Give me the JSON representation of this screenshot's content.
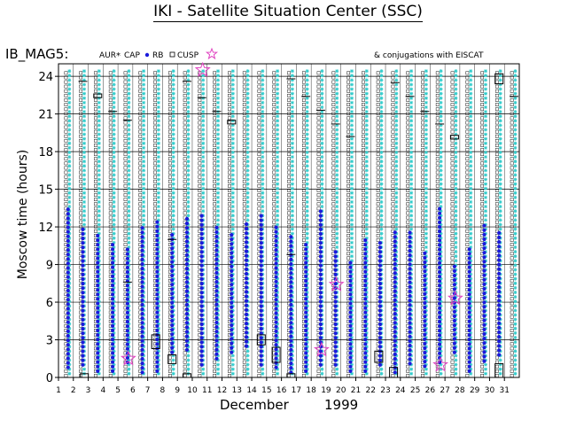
{
  "title": "IKI - Satellite Situation Center (SSC)",
  "header": {
    "dataset": "IB_MAG5:",
    "legend_aur": "AUR",
    "legend_cap": "CAP",
    "legend_rb": "RB",
    "legend_cusp": "CUSP",
    "conjugations": "& conjugations with EISCAT"
  },
  "colors": {
    "aur": "#33cccc",
    "cap": "#33cccc",
    "rb": "#1a1adb",
    "cusp": "#000000",
    "conjugation": "#e040c0",
    "grid": "#000000"
  },
  "chart_data": {
    "type": "scatter",
    "title": "IKI - Satellite Situation Center (SSC)",
    "ylabel": "Moscow time (hours)",
    "xlabel_month": "December",
    "xlabel_year": "1999",
    "xlim": [
      1,
      32
    ],
    "ylim": [
      0,
      25
    ],
    "x_ticks": [
      "1",
      "2",
      "3",
      "4",
      "5",
      "6",
      "7",
      "8",
      "9",
      "10",
      "11",
      "12",
      "13",
      "14",
      "15",
      "16",
      "17",
      "18",
      "19",
      "20",
      "21",
      "22",
      "23",
      "24",
      "25",
      "26",
      "27",
      "28",
      "29",
      "30",
      "31"
    ],
    "y_ticks": [
      0,
      3,
      6,
      9,
      12,
      15,
      18,
      21,
      24
    ],
    "grid": true,
    "series": [
      {
        "name": "AUR",
        "marker": "asterisk-cyan",
        "description": "dense coverage on every orbit pass"
      },
      {
        "name": "CAP",
        "marker": "asterisk-cyan"
      },
      {
        "name": "RB",
        "marker": "dot-blue"
      },
      {
        "name": "CUSP",
        "marker": "open-square"
      }
    ],
    "rb_segments": [
      {
        "day": 2,
        "from": 0.8,
        "to": 13.6
      },
      {
        "day": 3,
        "from": 1.0,
        "to": 12.0
      },
      {
        "day": 4,
        "from": 0.5,
        "to": 11.3
      },
      {
        "day": 5,
        "from": 0.5,
        "to": 10.8
      },
      {
        "day": 6,
        "from": 1.2,
        "to": 10.4
      },
      {
        "day": 7,
        "from": 0.4,
        "to": 12.1
      },
      {
        "day": 8,
        "from": 0.5,
        "to": 12.5
      },
      {
        "day": 9,
        "from": 2.0,
        "to": 11.6
      },
      {
        "day": 10,
        "from": 2.2,
        "to": 12.8
      },
      {
        "day": 11,
        "from": 1.0,
        "to": 13.2
      },
      {
        "day": 12,
        "from": 1.5,
        "to": 12.2
      },
      {
        "day": 13,
        "from": 2.0,
        "to": 11.6
      },
      {
        "day": 14,
        "from": 2.5,
        "to": 12.3
      },
      {
        "day": 15,
        "from": 1.0,
        "to": 13.2
      },
      {
        "day": 16,
        "from": 0.8,
        "to": 12.3
      },
      {
        "day": 17,
        "from": 0.4,
        "to": 11.5
      },
      {
        "day": 18,
        "from": 0.5,
        "to": 10.6
      },
      {
        "day": 19,
        "from": 1.0,
        "to": 13.3
      },
      {
        "day": 20,
        "from": 1.0,
        "to": 10.0
      },
      {
        "day": 21,
        "from": 0.5,
        "to": 9.3
      },
      {
        "day": 22,
        "from": 0.5,
        "to": 11.0
      },
      {
        "day": 23,
        "from": 1.0,
        "to": 10.8
      },
      {
        "day": 24,
        "from": 0.4,
        "to": 11.9
      },
      {
        "day": 25,
        "from": 1.1,
        "to": 11.6
      },
      {
        "day": 26,
        "from": 0.9,
        "to": 10.1
      },
      {
        "day": 27,
        "from": 1.2,
        "to": 13.5
      },
      {
        "day": 28,
        "from": 2.0,
        "to": 9.0
      },
      {
        "day": 29,
        "from": 0.5,
        "to": 10.5
      },
      {
        "day": 30,
        "from": 1.3,
        "to": 12.3
      },
      {
        "day": 31,
        "from": 1.8,
        "to": 11.7
      }
    ],
    "cusp_boxes": [
      {
        "day": 3.1,
        "from": 0.0,
        "to": 0.3
      },
      {
        "day": 7.9,
        "from": 2.3,
        "to": 3.4
      },
      {
        "day": 9.0,
        "from": 1.1,
        "to": 1.8
      },
      {
        "day": 10.0,
        "from": 0.0,
        "to": 0.3
      },
      {
        "day": 15.0,
        "from": 2.6,
        "to": 3.4
      },
      {
        "day": 16.0,
        "from": 1.2,
        "to": 2.4
      },
      {
        "day": 17.0,
        "from": 0.0,
        "to": 0.3
      },
      {
        "day": 22.9,
        "from": 1.2,
        "to": 2.1
      },
      {
        "day": 23.9,
        "from": 0.0,
        "to": 0.8
      },
      {
        "day": 31.0,
        "from": 0.0,
        "to": 1.1
      },
      {
        "day": 31.0,
        "from": 23.4,
        "to": 24.2
      },
      {
        "day": 4.0,
        "from": 22.3,
        "to": 22.6
      },
      {
        "day": 13.0,
        "from": 20.2,
        "to": 20.5
      },
      {
        "day": 28.0,
        "from": 19.0,
        "to": 19.3
      }
    ],
    "orbit_marks": [
      {
        "day": 3.0,
        "hour": 23.6
      },
      {
        "day": 5.0,
        "hour": 21.2
      },
      {
        "day": 6.0,
        "hour": 20.5
      },
      {
        "day": 9.0,
        "hour": 11.0
      },
      {
        "day": 10.0,
        "hour": 23.6
      },
      {
        "day": 11.0,
        "hour": 22.3
      },
      {
        "day": 12.0,
        "hour": 21.2
      },
      {
        "day": 17.0,
        "hour": 23.8
      },
      {
        "day": 17.0,
        "hour": 9.8
      },
      {
        "day": 18.0,
        "hour": 22.4
      },
      {
        "day": 19.0,
        "hour": 21.3
      },
      {
        "day": 20.0,
        "hour": 20.2
      },
      {
        "day": 21.0,
        "hour": 19.2
      },
      {
        "day": 24.0,
        "hour": 23.5
      },
      {
        "day": 25.0,
        "hour": 22.4
      },
      {
        "day": 26.0,
        "hour": 21.2
      },
      {
        "day": 27.0,
        "hour": 20.2
      },
      {
        "day": 32.0,
        "hour": 22.4
      },
      {
        "day": 6.0,
        "hour": 7.6
      }
    ],
    "conjugations": [
      {
        "day": 6.0,
        "hour": 1.5
      },
      {
        "day": 11.0,
        "hour": 24.5
      },
      {
        "day": 19.0,
        "hour": 2.2
      },
      {
        "day": 20.0,
        "hour": 7.4
      },
      {
        "day": 27.0,
        "hour": 1.0
      },
      {
        "day": 28.0,
        "hour": 6.3
      }
    ]
  }
}
